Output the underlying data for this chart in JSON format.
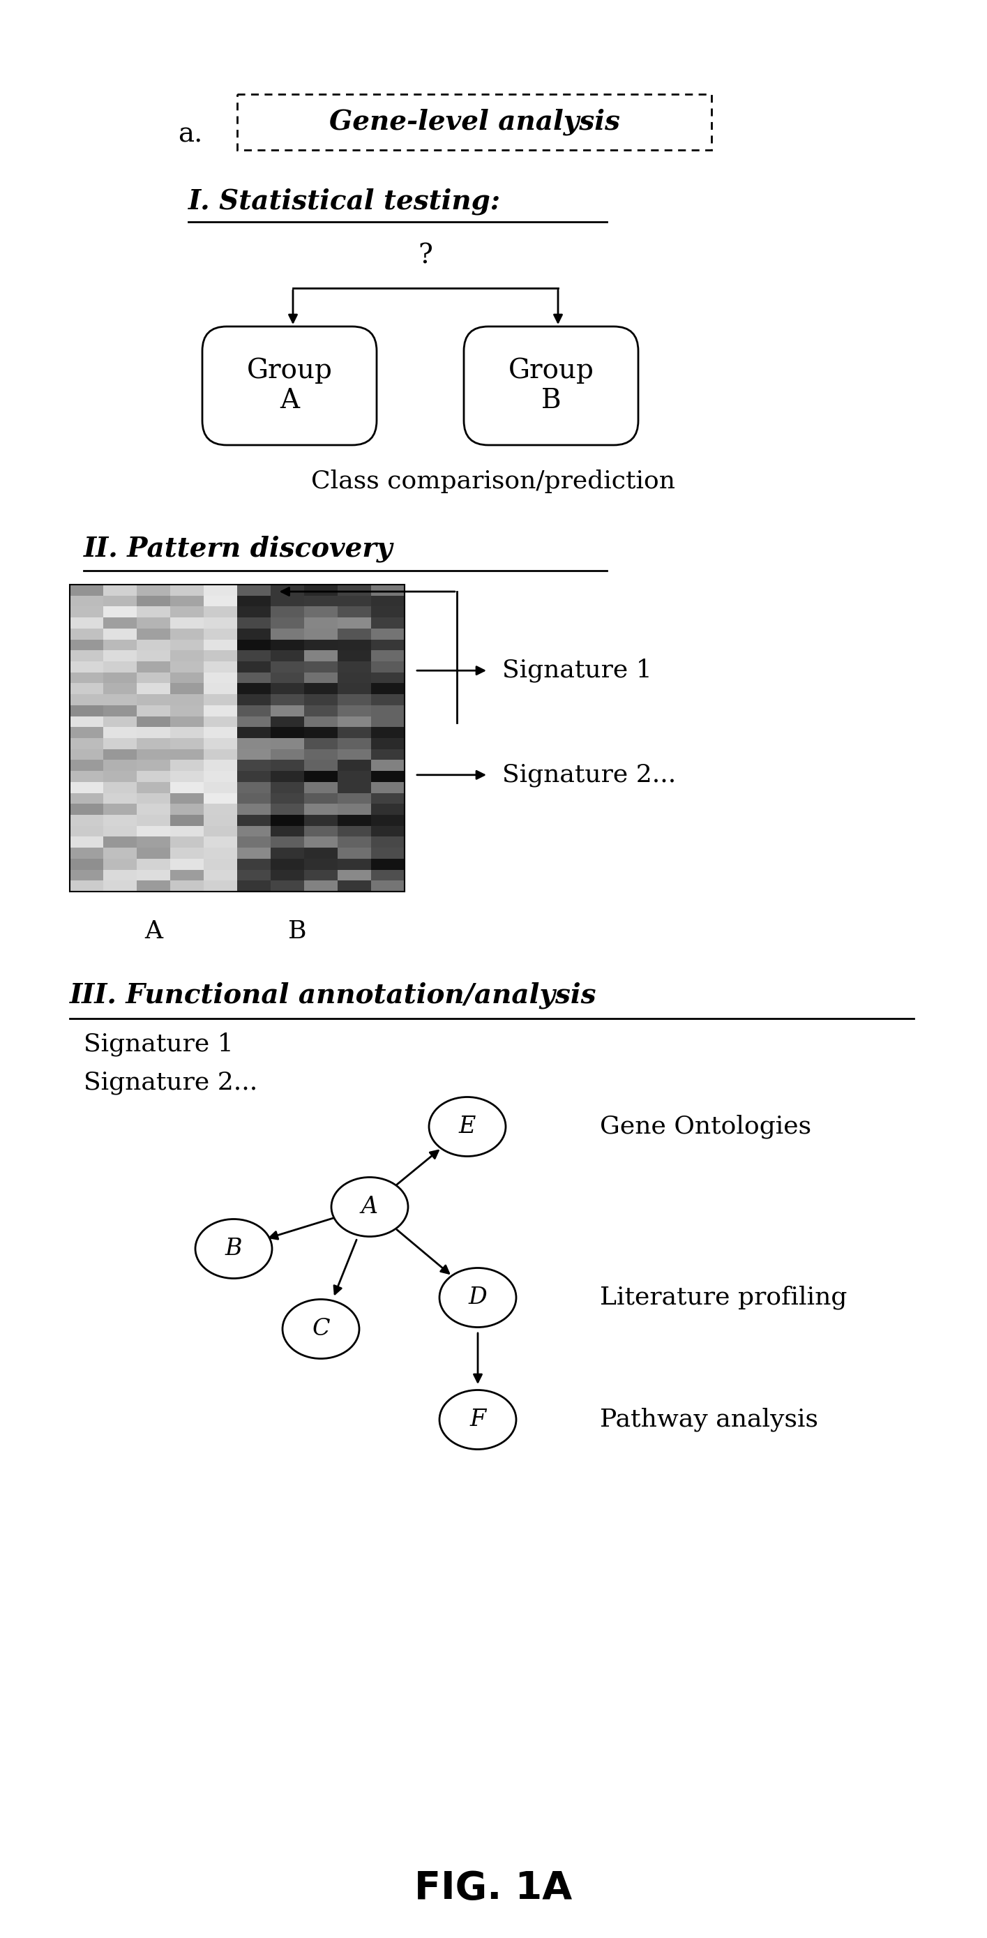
{
  "bg_color": "#ffffff",
  "fig_label": "a.",
  "panel_title": "Gene-level analysis",
  "section1_title": "I. Statistical testing:",
  "section2_title": "II. Pattern discovery",
  "section3_title": "III. Functional annotation/analysis",
  "class_label": "Class comparison/prediction",
  "groupA_label": "Group\nA",
  "groupB_label": "Group\nB",
  "sig1_label": "Signature 1",
  "sig2_label": "Signature 2...",
  "heatmap_col_labels": [
    "A",
    "B"
  ],
  "sig_list": [
    "Signature 1",
    "Signature 2..."
  ],
  "go_label": "Gene Ontologies",
  "lit_label": "Literature profiling",
  "path_label": "Pathway analysis",
  "fig_caption": "FIG. 1A"
}
